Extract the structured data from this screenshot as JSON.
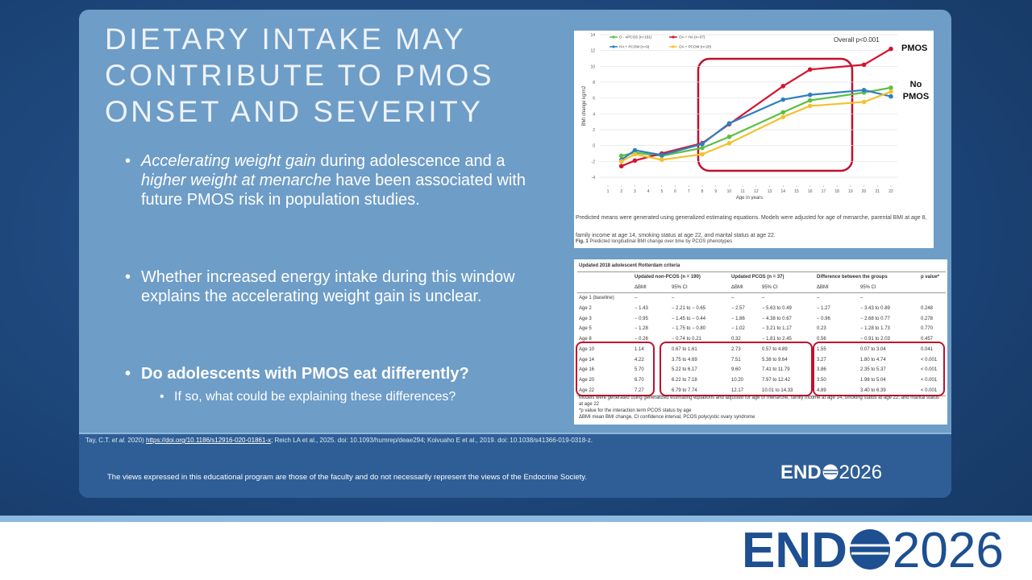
{
  "slide": {
    "title": "DIETARY INTAKE MAY CONTRIBUTE TO PMOS ONSET AND SEVERITY",
    "bullet_1": [
      "Accelerating weight gain",
      " during adolescence and a ",
      "higher weight at menarche",
      " have been associated with future PMOS risk in population studies."
    ],
    "bullet_2": "Whether increased energy intake during this window explains the accelerating weight gain is unclear.",
    "question": "Do adolescents with PMOS eat differently?",
    "sub_question": "If so, what could be explaining these differences?",
    "references": [
      "Tay, C.T. ",
      "et al.",
      " 2020) ",
      "https://doi.org/10.1186/s12916-020-01861-x",
      "; Reich LA et al., 2025. doi: 10.1093/humrep/deae294; Koivuaho E et al., 2019. doi: 10.1038/s41366-019-0318-z."
    ],
    "disclaimer": "The views expressed in this educational program are those of the faculty and do not necessarily represent the views of the Endocrine Society.",
    "logo": {
      "left": "END",
      "right": "2026"
    }
  },
  "chart_data": {
    "type": "line",
    "x_label": "Age in years",
    "y_label": "BMI change kg/m2",
    "annotations": [
      "Overall p<0.001",
      "PMOS",
      "No PMOS"
    ],
    "x": [
      2,
      3,
      5,
      8,
      10,
      14,
      16,
      20,
      22
    ],
    "xlim": [
      1,
      22
    ],
    "xticks": [
      1,
      2,
      3,
      4,
      5,
      6,
      7,
      8,
      9,
      10,
      11,
      12,
      13,
      14,
      15,
      16,
      17,
      18,
      19,
      20,
      21,
      22
    ],
    "ylim": [
      -4,
      14
    ],
    "yticks": [
      -4,
      -2,
      0,
      2,
      4,
      6,
      8,
      10,
      12,
      14
    ],
    "grid": true,
    "series": [
      {
        "name": "O - nPCOS (n=161)",
        "color": "#5cbf45",
        "values": [
          -1.3,
          -0.9,
          -1.3,
          -0.3,
          1.1,
          4.2,
          5.7,
          6.7,
          7.3
        ]
      },
      {
        "name": "OA + HA (n=37)",
        "color": "#d3152e",
        "values": [
          -2.6,
          -1.9,
          -1.0,
          0.3,
          2.7,
          7.5,
          9.6,
          10.2,
          12.2
        ]
      },
      {
        "name": "HA + PCOM (n=9)",
        "color": "#2f7fc1",
        "values": [
          -1.8,
          -0.6,
          -1.2,
          0.2,
          2.8,
          5.8,
          6.4,
          7.0,
          6.2
        ]
      },
      {
        "name": "OA + PCOM (n=20)",
        "color": "#f2c230",
        "values": [
          -2.0,
          -1.1,
          -1.8,
          -1.1,
          0.3,
          3.6,
          5.0,
          5.5,
          6.8
        ]
      }
    ]
  },
  "figure_caption": {
    "note": "Predicted means were generated using generalized estimating equations. Models were adjusted for age of menarche, parental BMI at age 8, family income at age 14, smoking status at age 22, and marital status at age 22.",
    "label": "Fig. 1",
    "text": "Predicted longitudinal BMI change over time by PCOS phenotypes"
  },
  "table": {
    "title": "Updated 2018 adolescent Rotterdam criteria",
    "groups": [
      "Updated non-PCOS (n = 190)",
      "Updated PCOS (n = 37)",
      "Difference between the groups",
      "p value*"
    ],
    "subheaders": [
      "ΔBMI",
      "95% CI",
      "ΔBMI",
      "95% CI",
      "ΔBMI",
      "95% CI"
    ],
    "rows": [
      [
        "Age 1 (baseline)",
        "–",
        "–",
        "–",
        "–",
        "–",
        "–",
        ""
      ],
      [
        "Age 2",
        "− 1.43",
        "− 2.21 to − 0.65",
        "− 2.57",
        "− 5.63 to 0.49",
        "− 1.27",
        "− 3.43 to 0.89",
        "0.248"
      ],
      [
        "Age 3",
        "− 0.95",
        "− 1.45 to − 0.44",
        "− 1.86",
        "− 4.38 to 0.67",
        "− 0.96",
        "− 2.68 to 0.77",
        "0.278"
      ],
      [
        "Age 5",
        "− 1.28",
        "− 1.75 to − 0.80",
        "− 1.02",
        "− 3.21 to 1.17",
        "0.23",
        "− 1.28 to 1.73",
        "0.770"
      ],
      [
        "Age 8",
        "− 0.26",
        "− 0.74 to 0.21",
        "0.32",
        "− 1.81 to 2.45",
        "0.56",
        "− 0.91 to 2.03",
        "0.457"
      ],
      [
        "Age 10",
        "1.14",
        "0.67 to 1.61",
        "2.73",
        "0.57 to 4.89",
        "1.55",
        "0.07 to 3.04",
        "0.041"
      ],
      [
        "Age 14",
        "4.22",
        "3.75 to 4.69",
        "7.51",
        "5.38 to 9.64",
        "3.27",
        "1.80 to 4.74",
        "< 0.001"
      ],
      [
        "Age 16",
        "5.70",
        "5.22 to 6.17",
        "9.60",
        "7.41 to 11.79",
        "3.86",
        "2.35 to 5.37",
        "< 0.001"
      ],
      [
        "Age 20",
        "6.70",
        "6.22 to 7.18",
        "10.20",
        "7.97 to 12.42",
        "3.50",
        "1.98 to 5.04",
        "< 0.001"
      ],
      [
        "Age 22",
        "7.27",
        "6.79 to 7.74",
        "12.17",
        "10.01 to 14.33",
        "4.89",
        "3.40 to 6.39",
        "< 0.001"
      ]
    ],
    "footnotes": [
      "Models were generated using generalized estimating equations and adjusted for age of menarche, family income at age 14, smoking status at age 22, and marital status at age 22",
      "*p value for the interaction term PCOS status by age",
      "ΔBMI mean BMI change, CI confidence interval, PCOS polycystic ovary syndrome"
    ]
  }
}
